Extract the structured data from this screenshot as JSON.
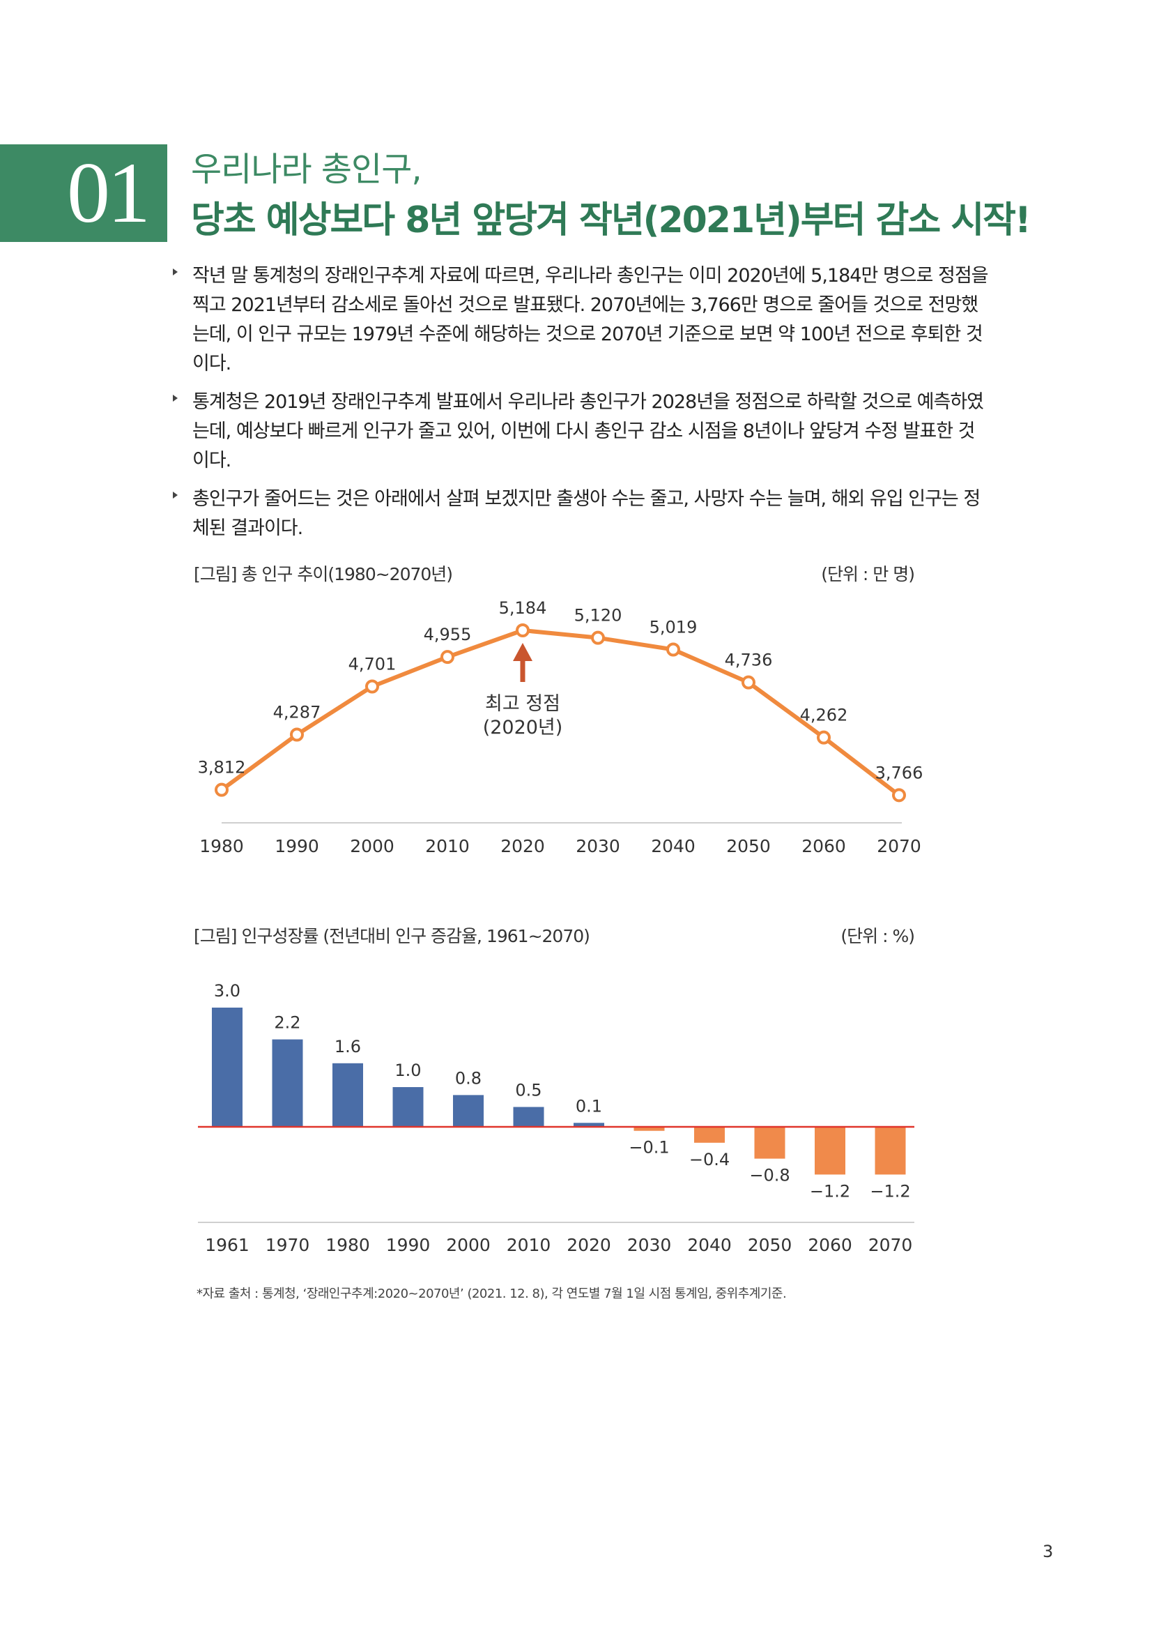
{
  "section": {
    "number": "01",
    "subtitle": "우리나라 총인구,",
    "title": "당초 예상보다 8년 앞당겨 작년(2021년)부터 감소 시작!"
  },
  "bullets": [
    {
      "lines": [
        "작년 말 통계청의 장래인구추계 자료에 따르면, 우리나라 총인구는 이미 2020년에 5,184만 명으로 정점을",
        "찍고 2021년부터 감소세로 돌아선 것으로 발표됐다. 2070년에는 3,766만 명으로 줄어들 것으로 전망했",
        "는데, 이 인구 규모는 1979년 수준에 해당하는 것으로 2070년 기준으로 보면 약 100년 전으로 후퇴한 것",
        "이다."
      ]
    },
    {
      "lines": [
        "통계청은 2019년 장래인구추계 발표에서 우리나라 총인구가 2028년을 정점으로 하락할 것으로 예측하였",
        "는데, 예상보다 빠르게 인구가 줄고 있어, 이번에 다시 총인구 감소 시점을 8년이나 앞당겨 수정 발표한 것",
        "이다."
      ]
    },
    {
      "lines": [
        "총인구가 줄어드는 것은 아래에서 살펴 보겠지만 출생아 수는 줄고, 사망자 수는 늘며, 해외 유입 인구는 정",
        "체된 결과이다."
      ]
    }
  ],
  "figure1": {
    "caption": "[그림] 총 인구 추이(1980~2070년)",
    "unit": "(단위 : 만 명)"
  },
  "figure2": {
    "caption": "[그림] 인구성장률 (전년대비 인구 증감율, 1961~2070)",
    "unit": "(단위 : %)"
  },
  "chart_data": [
    {
      "type": "line",
      "title": "[그림] 총 인구 추이(1980~2070년)",
      "unit": "(단위 : 만 명)",
      "x": [
        "1980",
        "1990",
        "2000",
        "2010",
        "2020",
        "2030",
        "2040",
        "2050",
        "2060",
        "2070"
      ],
      "values": [
        3812,
        4287,
        4701,
        4955,
        5184,
        5120,
        5019,
        4736,
        4262,
        3766
      ],
      "data_labels": [
        "3,812",
        "4,287",
        "4,701",
        "4,955",
        "5,184",
        "5,120",
        "5,019",
        "4,736",
        "4,262",
        "3,766"
      ],
      "line_color": "#f08a3e",
      "grid": false,
      "annotation": {
        "x": "2020",
        "lines": [
          "최고 정점",
          "(2020년)"
        ],
        "arrow_color": "#c9552e"
      }
    },
    {
      "type": "bar",
      "title": "[그림] 인구성장률 (전년대비 인구 증감율, 1961~2070)",
      "unit": "(단위 : %)",
      "categories": [
        "1961",
        "1970",
        "1980",
        "1990",
        "2000",
        "2010",
        "2020",
        "2030",
        "2040",
        "2050",
        "2060",
        "2070"
      ],
      "values": [
        3.0,
        2.2,
        1.6,
        1.0,
        0.8,
        0.5,
        0.1,
        -0.1,
        -0.4,
        -0.8,
        -1.2,
        -1.2
      ],
      "data_labels": [
        "3.0",
        "2.2",
        "1.6",
        "1.0",
        "0.8",
        "0.5",
        "0.1",
        "−0.1",
        "−0.4",
        "−0.8",
        "−1.2",
        "−1.2"
      ],
      "positive_color": "#4a6da7",
      "negative_color": "#f08a4b",
      "zero_line_color": "#e0352b",
      "grid": false
    }
  ],
  "source_note": "*자료 출처 : 통계청, ‘장래인구추계:2020~2070년’ (2021. 12. 8), 각 연도별 7월 1일 시점 통계임, 중위추계기준.",
  "page_number": "3"
}
